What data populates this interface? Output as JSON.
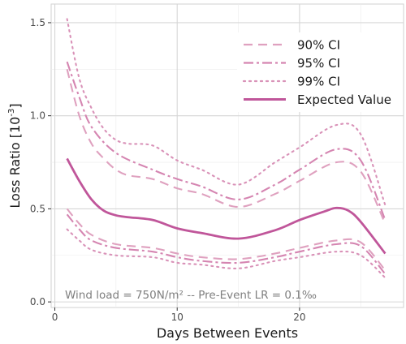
{
  "chart_data": {
    "type": "line",
    "xlabel": "Days Between Events",
    "ylabel": "Loss Ratio [10^-3]",
    "xlim": [
      -0.3,
      28.5
    ],
    "ylim": [
      -0.03,
      1.6
    ],
    "x_ticks": [
      0,
      10,
      20
    ],
    "y_ticks": [
      0.0,
      0.5,
      1.0,
      1.5
    ],
    "y_tick_labels": [
      "0.0",
      "0.5",
      "1.0",
      "1.5"
    ],
    "grid": true,
    "legend_position": "top-right",
    "annotation": "Wind load = 750N/m²  --  Pre-Event LR = 0.1‰",
    "color": "#c0569a",
    "series": [
      {
        "name": "90% CI",
        "style": "dashed",
        "upper": {
          "x": [
            1,
            2,
            3,
            4,
            5,
            6,
            8,
            10,
            12,
            15,
            18,
            20,
            23,
            25,
            27
          ],
          "y": [
            1.25,
            1.0,
            0.85,
            0.77,
            0.71,
            0.68,
            0.66,
            0.61,
            0.58,
            0.51,
            0.58,
            0.65,
            0.75,
            0.7,
            0.42
          ]
        },
        "lower": {
          "x": [
            1,
            2,
            3,
            5,
            8,
            10,
            12,
            15,
            18,
            20,
            23,
            25,
            27
          ],
          "y": [
            0.5,
            0.42,
            0.36,
            0.31,
            0.29,
            0.26,
            0.24,
            0.23,
            0.26,
            0.29,
            0.33,
            0.32,
            0.17
          ]
        }
      },
      {
        "name": "95% CI",
        "style": "dashdot",
        "upper": {
          "x": [
            1,
            2,
            3,
            5,
            8,
            10,
            12,
            15,
            18,
            20,
            23,
            25,
            27
          ],
          "y": [
            1.29,
            1.1,
            0.94,
            0.8,
            0.71,
            0.66,
            0.62,
            0.55,
            0.63,
            0.71,
            0.82,
            0.76,
            0.44
          ]
        },
        "lower": {
          "x": [
            1,
            2,
            3,
            5,
            8,
            10,
            12,
            15,
            18,
            20,
            23,
            25,
            27
          ],
          "y": [
            0.47,
            0.39,
            0.33,
            0.29,
            0.27,
            0.24,
            0.22,
            0.21,
            0.24,
            0.27,
            0.31,
            0.3,
            0.15
          ]
        }
      },
      {
        "name": "99% CI",
        "style": "dotted",
        "upper": {
          "x": [
            1,
            2,
            3,
            4,
            5,
            6,
            8,
            10,
            12,
            15,
            18,
            20,
            23,
            25,
            27
          ],
          "y": [
            1.52,
            1.2,
            1.04,
            0.93,
            0.87,
            0.85,
            0.84,
            0.76,
            0.71,
            0.63,
            0.75,
            0.83,
            0.95,
            0.9,
            0.52
          ]
        },
        "lower": {
          "x": [
            1,
            2,
            3,
            5,
            8,
            10,
            12,
            15,
            18,
            20,
            23,
            25,
            27
          ],
          "y": [
            0.39,
            0.33,
            0.28,
            0.25,
            0.24,
            0.21,
            0.2,
            0.18,
            0.22,
            0.24,
            0.27,
            0.25,
            0.13
          ]
        }
      },
      {
        "name": "Expected Value",
        "style": "solid",
        "x": [
          1,
          2,
          3,
          4,
          5,
          6,
          8,
          10,
          12,
          15,
          18,
          20,
          22,
          23,
          24,
          25,
          27
        ],
        "y": [
          0.77,
          0.65,
          0.55,
          0.49,
          0.465,
          0.455,
          0.44,
          0.395,
          0.37,
          0.34,
          0.385,
          0.44,
          0.485,
          0.505,
          0.49,
          0.43,
          0.26
        ]
      }
    ]
  }
}
